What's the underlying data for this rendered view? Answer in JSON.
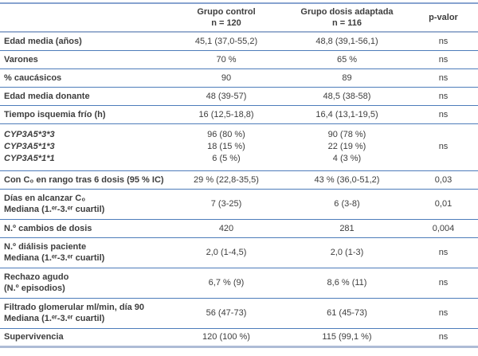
{
  "colors": {
    "border_strong": "#4d7cba",
    "border_top": "#87a3cf",
    "border_header": "#9bafd0",
    "border_bottom_bar": "#aebcd6",
    "text": "#3d3d3d",
    "bg": "#ffffff"
  },
  "table": {
    "header": {
      "empty": "",
      "group_control": [
        "Grupo control",
        "n = 120"
      ],
      "group_adapted": [
        "Grupo dosis adaptada",
        "n = 116"
      ],
      "p_label": "p-valor"
    },
    "rows": [
      {
        "label": [
          "Edad media (años)"
        ],
        "italic": false,
        "control": [
          "45,1 (37,0-55,2)"
        ],
        "adapted": [
          "48,8 (39,1-56,1)"
        ],
        "p": "ns"
      },
      {
        "label": [
          "Varones"
        ],
        "italic": false,
        "control": [
          "70 %"
        ],
        "adapted": [
          "65 %"
        ],
        "p": "ns"
      },
      {
        "label": [
          "% caucásicos"
        ],
        "italic": false,
        "control": [
          "90"
        ],
        "adapted": [
          "89"
        ],
        "p": "ns"
      },
      {
        "label": [
          "Edad media donante"
        ],
        "italic": false,
        "control": [
          "48 (39-57)"
        ],
        "adapted": [
          "48,5 (38-58)"
        ],
        "p": "ns"
      },
      {
        "label": [
          "Tiempo isquemia frío (h)"
        ],
        "italic": false,
        "control": [
          "16 (12,5-18,8)"
        ],
        "adapted": [
          "16,4 (13,1-19,5)"
        ],
        "p": "ns"
      },
      {
        "label": [
          "CYP3A5*3*3",
          "CYP3A5*1*3",
          "CYP3A5*1*1"
        ],
        "italic": true,
        "control": [
          "96 (80 %)",
          "18 (15 %)",
          "6 (5 %)"
        ],
        "adapted": [
          "90 (78 %)",
          "22 (19 %)",
          "4 (3 %)"
        ],
        "p": "ns"
      },
      {
        "label": [
          "Con C₀ en rango tras 6 dosis (95 % IC)"
        ],
        "italic": false,
        "control": [
          "29 % (22,8-35,5)"
        ],
        "adapted": [
          "43 % (36,0-51,2)"
        ],
        "p": "0,03"
      },
      {
        "label": [
          "Días en alcanzar C₀",
          "Mediana (1.ᵉʳ-3.ᵉʳ cuartil)"
        ],
        "italic": false,
        "control": [
          "7 (3-25)"
        ],
        "adapted": [
          "6 (3-8)"
        ],
        "p": "0,01"
      },
      {
        "label": [
          "N.º cambios de dosis"
        ],
        "italic": false,
        "control": [
          "420"
        ],
        "adapted": [
          "281"
        ],
        "p": "0,004"
      },
      {
        "label": [
          "N.º diálisis paciente",
          "Mediana (1.ᵉʳ-3.ᵉʳ cuartil)"
        ],
        "italic": false,
        "control": [
          "2,0 (1-4,5)"
        ],
        "adapted": [
          "2,0 (1-3)"
        ],
        "p": "ns"
      },
      {
        "label": [
          "Rechazo agudo",
          "(N.º episodios)"
        ],
        "italic": false,
        "control": [
          "6,7 % (9)"
        ],
        "adapted": [
          "8,6 % (11)"
        ],
        "p": "ns"
      },
      {
        "label": [
          "Filtrado glomerular ml/min, día 90",
          "Mediana (1.ᵉʳ-3.ᵉʳ cuartil)"
        ],
        "italic": false,
        "control": [
          "56 (47-73)"
        ],
        "adapted": [
          "61 (45-73)"
        ],
        "p": "ns"
      },
      {
        "label": [
          "Supervivencia"
        ],
        "italic": false,
        "control": [
          "120 (100 %)"
        ],
        "adapted": [
          "115 (99,1 %)"
        ],
        "p": "ns"
      }
    ]
  }
}
